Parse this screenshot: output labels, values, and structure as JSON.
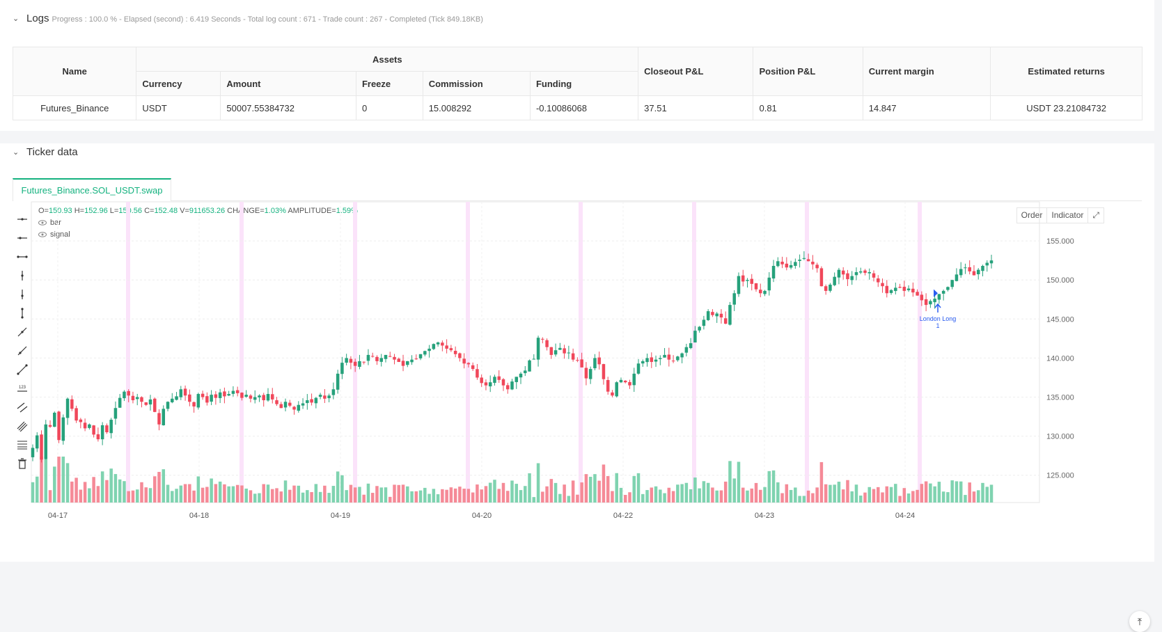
{
  "logs": {
    "title": "Logs",
    "status": "Progress : 100.0 % - Elapsed (second) : 6.419  Seconds - Total log count : 671 - Trade count : 267 - Completed (Tick 849.18KB)",
    "table": {
      "name_header": "Name",
      "assets_header": "Assets",
      "asset_cols": [
        "Currency",
        "Amount",
        "Freeze",
        "Commission",
        "Funding"
      ],
      "closeout_header": "Closeout P&L",
      "position_header": "Position P&L",
      "margin_header": "Current margin",
      "returns_header": "Estimated returns",
      "row": {
        "name": "Futures_Binance",
        "currency": "USDT",
        "amount": "50007.55384732",
        "freeze": "0",
        "commission": "15.008292",
        "funding": "-0.10086068",
        "closeout": "37.51",
        "position": "0.81",
        "margin": "14.847",
        "returns": "USDT 23.21084732"
      }
    }
  },
  "ticker": {
    "title": "Ticker data",
    "tab": "Futures_Binance.SOL_USDT.swap",
    "ohlc": {
      "o_label": "O=",
      "o": "150.93",
      "h_label": "H=",
      "h": "152.96",
      "l_label": "L=",
      "l": "150.56",
      "c_label": "C=",
      "c": "152.48",
      "v_label": "V=",
      "v": "911653.26",
      "change_label": "CHANGE=",
      "change": "1.03%",
      "amp_label": "AMPLITUDE=",
      "amp": "1.59%"
    },
    "legend": [
      "bar",
      "signal"
    ],
    "buttons": [
      "Order",
      "Indicator"
    ],
    "annotation": {
      "text": "London Long",
      "sub": "1"
    }
  },
  "colors": {
    "up": "#26a17b",
    "down": "#f0475a",
    "accent": "#14b27f",
    "session": "#fbe3fa",
    "signal": "#2a5cf0"
  },
  "chart_data": {
    "type": "candlestick",
    "y_ticks": [
      "155.000",
      "150.000",
      "145.000",
      "140.000",
      "135.000",
      "130.000",
      "125.000"
    ],
    "ylim": [
      121.5,
      160.0
    ],
    "x_ticks": [
      "04-17",
      "04-18",
      "04-19",
      "04-20",
      "04-22",
      "04-23",
      "04-24"
    ],
    "closes": [
      128.5,
      130.1,
      127.0,
      131.5,
      131.2,
      133.0,
      129.5,
      132.4,
      134.8,
      133.5,
      132.0,
      131.8,
      131.0,
      131.5,
      130.2,
      129.6,
      131.4,
      130.5,
      132.1,
      133.6,
      134.9,
      135.7,
      135.2,
      134.6,
      135.0,
      134.4,
      134.0,
      134.7,
      133.1,
      131.5,
      133.5,
      134.4,
      134.8,
      135.1,
      136.0,
      135.2,
      134.4,
      133.8,
      135.4,
      135.0,
      134.3,
      135.3,
      134.9,
      135.6,
      135.1,
      135.4,
      135.8,
      135.5,
      134.9,
      135.3,
      134.8,
      135.0,
      135.2,
      134.6,
      135.4,
      134.7,
      134.1,
      133.6,
      134.4,
      133.9,
      133.4,
      134.0,
      134.2,
      134.6,
      134.3,
      134.9,
      135.3,
      134.8,
      135.2,
      136.0,
      138.0,
      139.4,
      140.0,
      139.4,
      139.0,
      139.6,
      139.5,
      140.4,
      140.2,
      139.6,
      140.0,
      140.4,
      140.2,
      139.8,
      139.5,
      139.0,
      139.6,
      139.8,
      139.9,
      140.5,
      140.9,
      141.2,
      141.8,
      142.0,
      141.6,
      141.2,
      141.0,
      140.5,
      140.0,
      139.3,
      139.2,
      138.6,
      137.5,
      136.8,
      136.5,
      136.9,
      137.6,
      137.2,
      136.5,
      136.0,
      137.0,
      137.6,
      138.0,
      138.4,
      139.7,
      139.9,
      142.6,
      142.4,
      141.4,
      140.4,
      141.0,
      141.3,
      140.6,
      140.7,
      139.8,
      139.7,
      138.8,
      137.4,
      138.6,
      140.0,
      139.2,
      137.3,
      135.7,
      135.2,
      136.9,
      137.2,
      136.9,
      136.5,
      138.0,
      139.3,
      139.6,
      140.0,
      139.5,
      139.8,
      140.0,
      140.4,
      139.8,
      139.6,
      140.2,
      140.6,
      141.4,
      141.9,
      143.5,
      144.0,
      144.9,
      146.0,
      145.5,
      145.7,
      145.2,
      144.4,
      146.8,
      148.3,
      150.5,
      149.8,
      150.0,
      149.5,
      148.8,
      148.3,
      148.6,
      150.3,
      151.8,
      152.4,
      152.0,
      151.6,
      151.9,
      152.3,
      152.6,
      152.8,
      152.4,
      152.0,
      151.5,
      149.2,
      148.6,
      149.4,
      150.4,
      151.3,
      150.7,
      150.1,
      150.5,
      151.0,
      151.1,
      150.9,
      151.0,
      150.3,
      149.7,
      149.2,
      148.3,
      148.7,
      149.0,
      149.0,
      148.6,
      148.9,
      148.4,
      148.0,
      147.4,
      146.8,
      147.3,
      147.6,
      148.2,
      148.6,
      149.1,
      150.0,
      150.7,
      151.4,
      151.6,
      151.1,
      150.6,
      151.3,
      151.8,
      152.2,
      152.5
    ]
  }
}
